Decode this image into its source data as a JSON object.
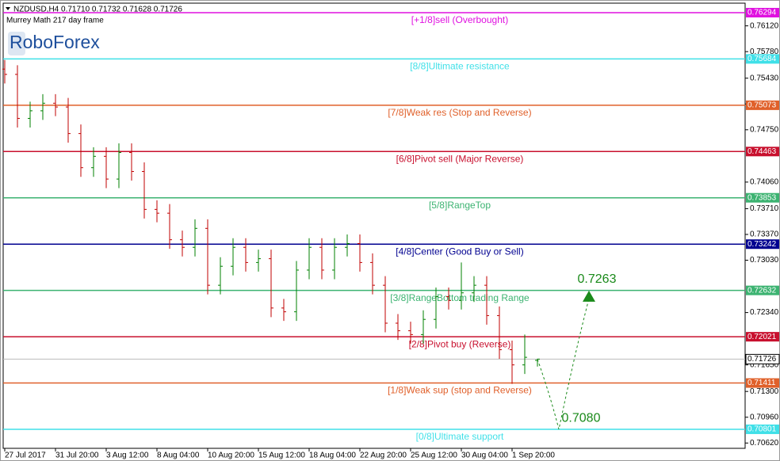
{
  "chart_data": {
    "type": "ohlc",
    "header": "NZDUSD,H4  0.71710 0.71732 0.71628 0.71726",
    "subtitle": "Murrey Math 217 day frame",
    "brand": "RoboForex",
    "up_color": "#008000",
    "down_color": "#c00000",
    "categories": [
      "27 Jul 2017",
      null,
      null,
      null,
      "31 Jul 20:00",
      null,
      null,
      null,
      "3 Aug 12:00",
      null,
      null,
      null,
      "8 Aug 04:00",
      null,
      null,
      null,
      "10 Aug 20:00",
      null,
      null,
      null,
      "15 Aug 12:00",
      null,
      null,
      null,
      "18 Aug 04:00",
      null,
      null,
      null,
      "22 Aug 20:00",
      null,
      null,
      null,
      "25 Aug 12:00",
      null,
      null,
      null,
      "30 Aug 04:00",
      null,
      null,
      null,
      "1 Sep 20:00",
      null,
      null
    ],
    "open": [
      0.7555,
      0.7548,
      0.749,
      0.75,
      0.751,
      0.7505,
      0.747,
      0.7425,
      0.744,
      0.741,
      0.7445,
      0.742,
      0.737,
      0.7365,
      0.733,
      0.732,
      0.7345,
      0.727,
      0.7295,
      0.732,
      0.73,
      0.7305,
      0.724,
      0.7235,
      0.729,
      0.732,
      0.729,
      0.732,
      0.7325,
      0.73,
      0.727,
      0.722,
      0.721,
      0.7205,
      0.7225,
      0.7255,
      0.725,
      0.726,
      0.727,
      0.723,
      0.7185,
      0.7165,
      0.7171
    ],
    "high": [
      0.7567,
      0.756,
      0.7512,
      0.7522,
      0.7522,
      0.7517,
      0.7482,
      0.7452,
      0.7452,
      0.7457,
      0.7457,
      0.7432,
      0.7382,
      0.7377,
      0.7342,
      0.7357,
      0.7357,
      0.7307,
      0.7332,
      0.7332,
      0.7317,
      0.7317,
      0.7252,
      0.7302,
      0.7332,
      0.7332,
      0.7332,
      0.7337,
      0.7337,
      0.7312,
      0.7282,
      0.7232,
      0.7222,
      0.7237,
      0.7267,
      0.7267,
      0.73,
      0.7282,
      0.7282,
      0.7242,
      0.7197,
      0.7205,
      0.71732
    ],
    "low": [
      0.7536,
      0.7478,
      0.7478,
      0.7488,
      0.7493,
      0.7458,
      0.7413,
      0.7413,
      0.7398,
      0.7398,
      0.7408,
      0.7358,
      0.7353,
      0.7318,
      0.7308,
      0.7308,
      0.7258,
      0.7258,
      0.7283,
      0.7288,
      0.7288,
      0.7228,
      0.7223,
      0.7223,
      0.7278,
      0.7278,
      0.7278,
      0.7308,
      0.7288,
      0.7258,
      0.7208,
      0.7198,
      0.7193,
      0.7193,
      0.7213,
      0.7238,
      0.7238,
      0.7248,
      0.7218,
      0.7173,
      0.714,
      0.7153,
      0.71628
    ],
    "close": [
      0.7548,
      0.749,
      0.75,
      0.751,
      0.7505,
      0.747,
      0.7425,
      0.744,
      0.741,
      0.7445,
      0.742,
      0.737,
      0.7365,
      0.733,
      0.732,
      0.7345,
      0.727,
      0.7295,
      0.732,
      0.73,
      0.7305,
      0.724,
      0.7235,
      0.729,
      0.732,
      0.729,
      0.732,
      0.7325,
      0.73,
      0.727,
      0.722,
      0.721,
      0.7205,
      0.7225,
      0.7255,
      0.725,
      0.726,
      0.727,
      0.723,
      0.7185,
      0.7165,
      0.7175,
      0.71726
    ],
    "ylim": [
      0.7055,
      0.76419
    ],
    "yticks": [
      {
        "value": 0.7612,
        "label": "0.76120"
      },
      {
        "value": 0.7578,
        "label": "0.75780"
      },
      {
        "value": 0.7543,
        "label": "0.75430"
      },
      {
        "value": 0.7509,
        "label": "0.75090"
      },
      {
        "value": 0.7475,
        "label": "0.74750"
      },
      {
        "value": 0.7406,
        "label": "0.74060"
      },
      {
        "value": 0.7371,
        "label": "0.73710"
      },
      {
        "value": 0.7337,
        "label": "0.73370"
      },
      {
        "value": 0.7303,
        "label": "0.73030"
      },
      {
        "value": 0.7234,
        "label": "0.72340"
      },
      {
        "value": 0.7165,
        "label": "0.71650"
      },
      {
        "value": 0.713,
        "label": "0.71300"
      },
      {
        "value": 0.7096,
        "label": "0.70960"
      },
      {
        "value": 0.7062,
        "label": "0.70620"
      }
    ],
    "levels": [
      {
        "value": 0.76294,
        "label": "[+1/8]sell (Overbought)",
        "color": "#e010e0"
      },
      {
        "value": 0.75684,
        "label": "[8/8]Ultimate resistance",
        "color": "#40e0e8"
      },
      {
        "value": 0.75073,
        "label": "[7/8]Weak res (Stop and Reverse)",
        "color": "#e0602a"
      },
      {
        "value": 0.74463,
        "label": "[6/8]Pivot sell (Major Reverse)",
        "color": "#c8102e"
      },
      {
        "value": 0.73853,
        "label": "[5/8]RangeTop",
        "color": "#3cb371"
      },
      {
        "value": 0.73242,
        "label": "[4/8]Center (Good Buy or Sell)",
        "color": "#000090"
      },
      {
        "value": 0.72632,
        "label": "[3/8]RangeBottom trading Range",
        "color": "#3cb371"
      },
      {
        "value": 0.72021,
        "label": "[2/8]Pivot buy (Reverse)",
        "color": "#c8102e"
      },
      {
        "value": 0.71411,
        "label": "[1/8]Weak sup (stop and Reverse)",
        "color": "#e0602a"
      },
      {
        "value": 0.70801,
        "label": "[0/8]Ultimate support",
        "color": "#40e0e8"
      }
    ],
    "forecast": [
      {
        "value": 0.708,
        "label": "0.7080"
      },
      {
        "value": 0.7263,
        "label": "0.7263"
      }
    ]
  }
}
